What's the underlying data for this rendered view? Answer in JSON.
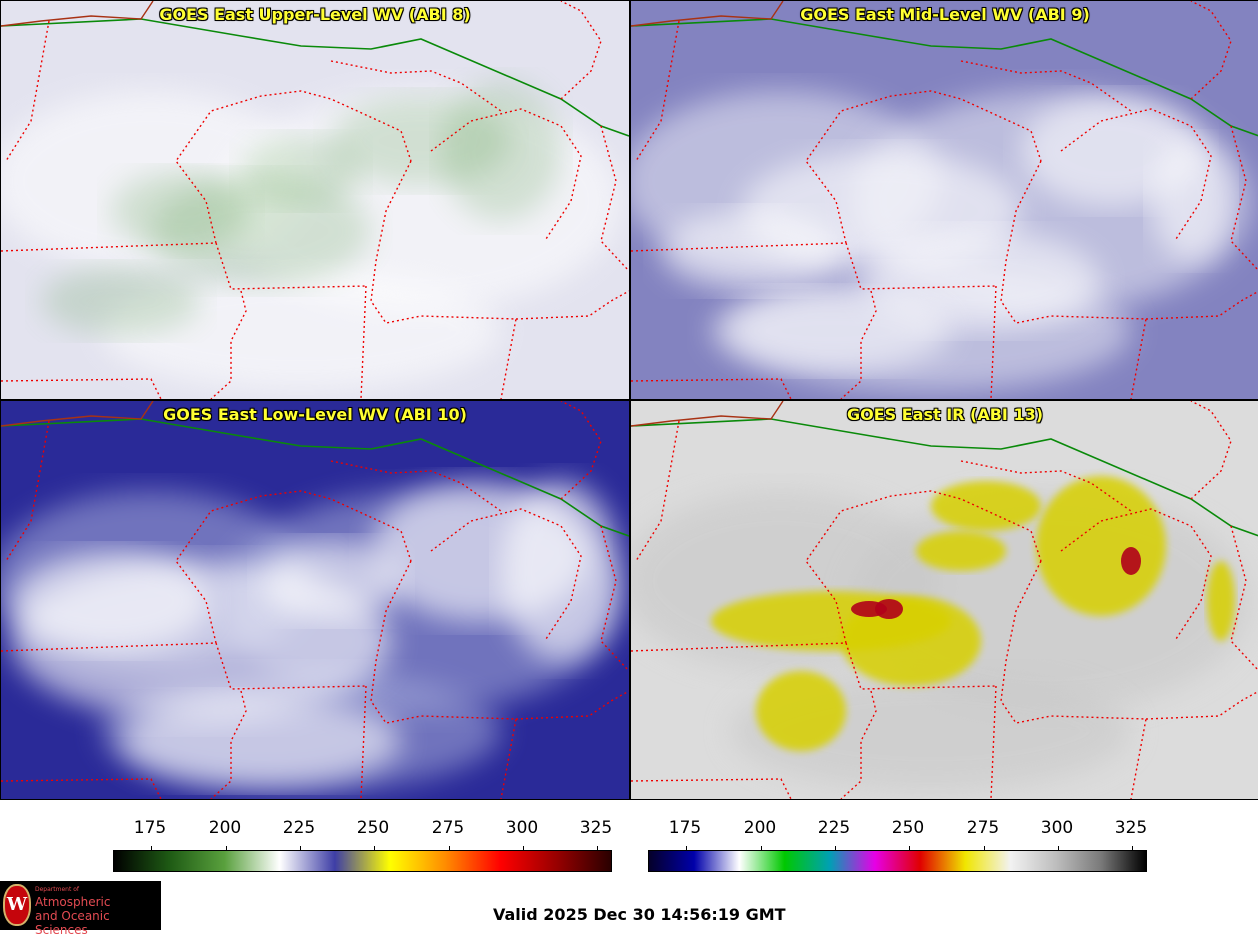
{
  "panels": [
    {
      "id": "p1",
      "title": "GOES East Upper-Level WV (ABI 8)",
      "bg": "#e3e3ef",
      "haze": "#ffffff",
      "cloud": "#5fa052",
      "cloud_op": 0.22
    },
    {
      "id": "p2",
      "title": "GOES East Mid-Level WV (ABI 9)",
      "bg": "#8383c0",
      "haze": "#ecedf6",
      "cloud": "#ffffff",
      "cloud_op": 0.55
    },
    {
      "id": "p3",
      "title": "GOES East Low-Level WV (ABI 10)",
      "bg": "#2a2a98",
      "haze": "#aab0dc",
      "cloud": "#ffffff",
      "cloud_op": 0.6
    },
    {
      "id": "p4",
      "title": "GOES East IR (ABI 13)",
      "bg": "#dcdcdc",
      "haze": "#c6c6c6",
      "cloud": "#d8d000",
      "cloud_op": 0.85
    }
  ],
  "colorbars": [
    {
      "name": "wv-colorbar",
      "ticks": [
        "175",
        "200",
        "225",
        "250",
        "275",
        "300",
        "325"
      ],
      "stops": [
        "#000000",
        "#1e5a14",
        "#59a03d",
        "#ffffff",
        "#3e3ea6",
        "#ffff00",
        "#ff8c00",
        "#ff0000",
        "#990000",
        "#2a0000"
      ]
    },
    {
      "name": "ir-colorbar",
      "ticks": [
        "175",
        "200",
        "225",
        "250",
        "275",
        "300",
        "325"
      ],
      "stops": [
        "#05002a",
        "#0000aa",
        "#ffffff",
        "#00c800",
        "#00a0b4",
        "#e600e6",
        "#e00000",
        "#f0e600",
        "#f2f2f2",
        "#bebebe",
        "#7a7a7a",
        "#000000"
      ]
    }
  ],
  "footer": {
    "valid": "Valid 2025 Dec 30 14:56:19 GMT",
    "logo": {
      "line1": "Department of",
      "line2": "Atmospheric",
      "line3": "and Oceanic Sciences",
      "seal": "W"
    }
  }
}
